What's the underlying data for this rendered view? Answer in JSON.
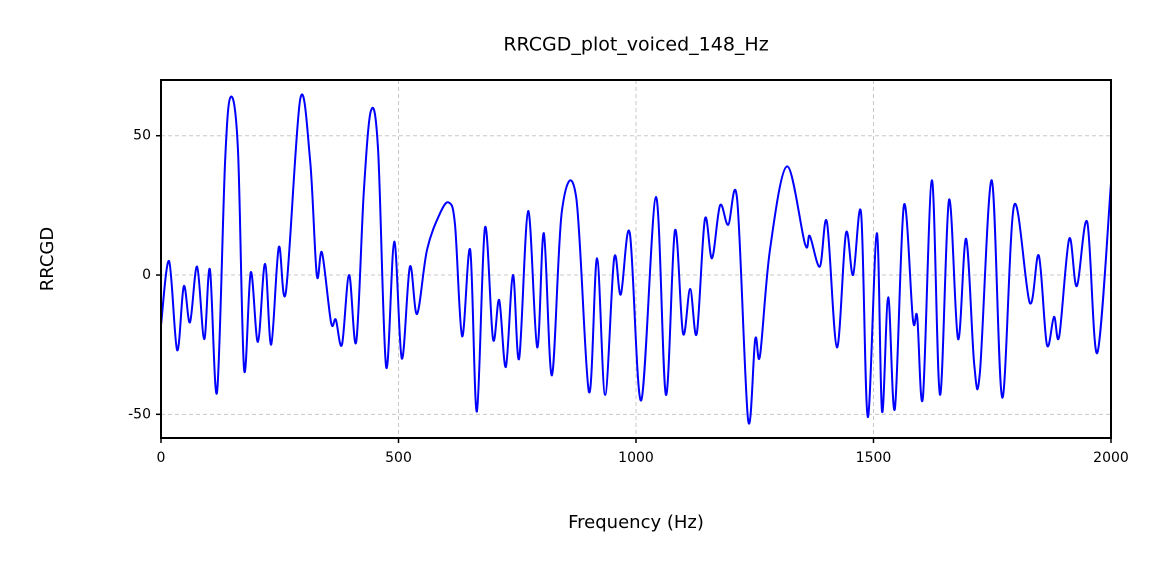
{
  "chart_data": {
    "type": "line",
    "title": "RRCGD_plot_voiced_148_Hz",
    "xlabel": "Frequency (Hz)",
    "ylabel": "RRCGD",
    "x": [
      0,
      17,
      34,
      48,
      61,
      76,
      91,
      103,
      118,
      135,
      147,
      162,
      175,
      189,
      204,
      219,
      232,
      248,
      263,
      293,
      314,
      328,
      339,
      358,
      368,
      381,
      396,
      411,
      427,
      442,
      457,
      474,
      491,
      507,
      524,
      539,
      560,
      587,
      606,
      619,
      634,
      651,
      665,
      682,
      699,
      712,
      726,
      741,
      754,
      773,
      792,
      806,
      823,
      844,
      874,
      901,
      918,
      935,
      954,
      968,
      987,
      1011,
      1042,
      1063,
      1082,
      1099,
      1114,
      1128,
      1145,
      1160,
      1177,
      1194,
      1213,
      1236,
      1251,
      1261,
      1282,
      1318,
      1356,
      1366,
      1387,
      1402,
      1423,
      1442,
      1457,
      1474,
      1488,
      1507,
      1518,
      1531,
      1545,
      1564,
      1583,
      1592,
      1604,
      1623,
      1640,
      1659,
      1678,
      1695,
      1712,
      1724,
      1749,
      1771,
      1796,
      1829,
      1848,
      1865,
      1880,
      1891,
      1912,
      1928,
      1950,
      1971,
      2000
    ],
    "values": [
      -18,
      5,
      -27,
      -4,
      -17,
      3,
      -23,
      2,
      -42,
      41,
      64,
      45,
      -34,
      1,
      -24,
      4,
      -25,
      10,
      -6,
      63,
      41,
      0,
      8,
      -17,
      -16,
      -25,
      0,
      -24,
      30,
      59,
      45,
      -33,
      12,
      -30,
      3,
      -14,
      9,
      22,
      26,
      18,
      -22,
      9,
      -49,
      17,
      -23,
      -9,
      -33,
      0,
      -30,
      23,
      -26,
      15,
      -36,
      23,
      28,
      -42,
      6,
      -43,
      6,
      -7,
      15,
      -45,
      28,
      -43,
      16,
      -21,
      -5,
      -21,
      20,
      6,
      25,
      18,
      27,
      -52,
      -23,
      -29,
      9,
      39,
      11,
      14,
      3,
      19,
      -26,
      15,
      0,
      22,
      -51,
      15,
      -49,
      -8,
      -48,
      25,
      -16,
      -15,
      -44,
      34,
      -43,
      27,
      -23,
      13,
      -32,
      -35,
      34,
      -44,
      25,
      -10,
      7,
      -25,
      -15,
      -22,
      13,
      -4,
      19,
      -28,
      33
    ],
    "color": "#0000ff",
    "xlim": [
      0,
      2000
    ],
    "xticks": [
      0,
      500,
      1000,
      1500,
      2000
    ],
    "ylim": [
      -58.5,
      70
    ],
    "yticks": [
      -50,
      0,
      50
    ],
    "grid": true
  }
}
